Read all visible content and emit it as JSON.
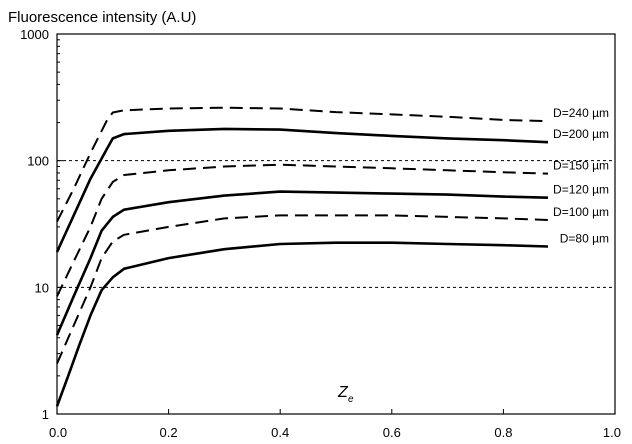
{
  "chart_data": {
    "type": "line",
    "title": "",
    "ylabel": "Fluorescence intensity (A.U)",
    "xlabel": "Z",
    "xlabel_subscript": "e",
    "xlim": [
      0.0,
      1.0
    ],
    "ylim": [
      1,
      1000
    ],
    "y_scale": "log",
    "x_ticks": [
      "0.0",
      "0.2",
      "0.4",
      "0.6",
      "0.8",
      "1.0"
    ],
    "y_ticks": [
      "1",
      "10",
      "100",
      "1000"
    ],
    "reference_lines_y": [
      10,
      100
    ],
    "grid": false,
    "legend": "inline labels at right end of each curve",
    "series": [
      {
        "name": "D=240 µm",
        "style": "dashed",
        "points": [
          [
            0.0,
            33
          ],
          [
            0.03,
            60
          ],
          [
            0.06,
            115
          ],
          [
            0.09,
            210
          ],
          [
            0.1,
            240
          ],
          [
            0.12,
            250
          ],
          [
            0.2,
            258
          ],
          [
            0.3,
            262
          ],
          [
            0.4,
            258
          ],
          [
            0.5,
            242
          ],
          [
            0.6,
            232
          ],
          [
            0.7,
            222
          ],
          [
            0.8,
            210
          ],
          [
            0.88,
            205
          ]
        ]
      },
      {
        "name": "D=200 µm",
        "style": "solid",
        "points": [
          [
            0.0,
            19
          ],
          [
            0.03,
            37
          ],
          [
            0.06,
            72
          ],
          [
            0.09,
            125
          ],
          [
            0.1,
            150
          ],
          [
            0.12,
            162
          ],
          [
            0.2,
            172
          ],
          [
            0.3,
            178
          ],
          [
            0.4,
            176
          ],
          [
            0.5,
            165
          ],
          [
            0.6,
            157
          ],
          [
            0.7,
            150
          ],
          [
            0.8,
            145
          ],
          [
            0.88,
            140
          ]
        ]
      },
      {
        "name": "D=150 µm",
        "style": "dashed",
        "points": [
          [
            0.0,
            8.5
          ],
          [
            0.03,
            16
          ],
          [
            0.06,
            30
          ],
          [
            0.08,
            50
          ],
          [
            0.1,
            68
          ],
          [
            0.12,
            77
          ],
          [
            0.2,
            84
          ],
          [
            0.3,
            90
          ],
          [
            0.4,
            93
          ],
          [
            0.5,
            90
          ],
          [
            0.6,
            87
          ],
          [
            0.7,
            84
          ],
          [
            0.8,
            81
          ],
          [
            0.88,
            79
          ]
        ]
      },
      {
        "name": "D=120 µm",
        "style": "solid",
        "points": [
          [
            0.0,
            4.2
          ],
          [
            0.03,
            8.5
          ],
          [
            0.06,
            17
          ],
          [
            0.08,
            28
          ],
          [
            0.1,
            36
          ],
          [
            0.12,
            41
          ],
          [
            0.2,
            47
          ],
          [
            0.3,
            53
          ],
          [
            0.4,
            57
          ],
          [
            0.5,
            56
          ],
          [
            0.6,
            55
          ],
          [
            0.7,
            54
          ],
          [
            0.8,
            52
          ],
          [
            0.88,
            51
          ]
        ]
      },
      {
        "name": "D=100 µm",
        "style": "dashed",
        "points": [
          [
            0.0,
            2.5
          ],
          [
            0.03,
            5
          ],
          [
            0.06,
            10
          ],
          [
            0.08,
            17
          ],
          [
            0.1,
            23
          ],
          [
            0.12,
            26
          ],
          [
            0.2,
            30
          ],
          [
            0.3,
            35
          ],
          [
            0.4,
            37
          ],
          [
            0.5,
            37
          ],
          [
            0.6,
            37
          ],
          [
            0.7,
            36
          ],
          [
            0.8,
            35
          ],
          [
            0.88,
            34
          ]
        ]
      },
      {
        "name": "D=80 µm",
        "style": "solid",
        "points": [
          [
            0.0,
            1.15
          ],
          [
            0.02,
            2
          ],
          [
            0.04,
            3.5
          ],
          [
            0.06,
            6
          ],
          [
            0.08,
            9.5
          ],
          [
            0.1,
            12
          ],
          [
            0.12,
            14
          ],
          [
            0.2,
            17
          ],
          [
            0.3,
            20
          ],
          [
            0.4,
            22
          ],
          [
            0.5,
            22.5
          ],
          [
            0.6,
            22.5
          ],
          [
            0.7,
            22
          ],
          [
            0.8,
            21.5
          ],
          [
            0.88,
            21
          ]
        ]
      }
    ]
  }
}
